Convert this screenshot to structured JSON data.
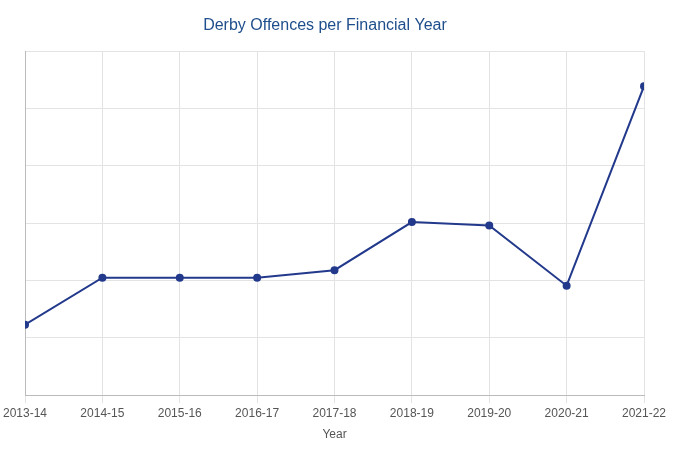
{
  "chart_data": {
    "type": "line",
    "title": "Derby Offences per Financial Year",
    "x_label": "Year",
    "categories": [
      "2013-14",
      "2014-15",
      "2015-16",
      "2016-17",
      "2017-18",
      "2018-19",
      "2019-20",
      "2020-21",
      "2021-22"
    ],
    "values": [
      6150,
      10250,
      10250,
      10250,
      10900,
      15100,
      14800,
      9550,
      26950
    ],
    "color": "#233a8c",
    "marker": "circle",
    "ylim": [
      0,
      30000
    ],
    "yticks": [
      0,
      5000,
      10000,
      15000,
      20000,
      25000,
      30000
    ],
    "grid": true,
    "tick_labels": "x"
  }
}
